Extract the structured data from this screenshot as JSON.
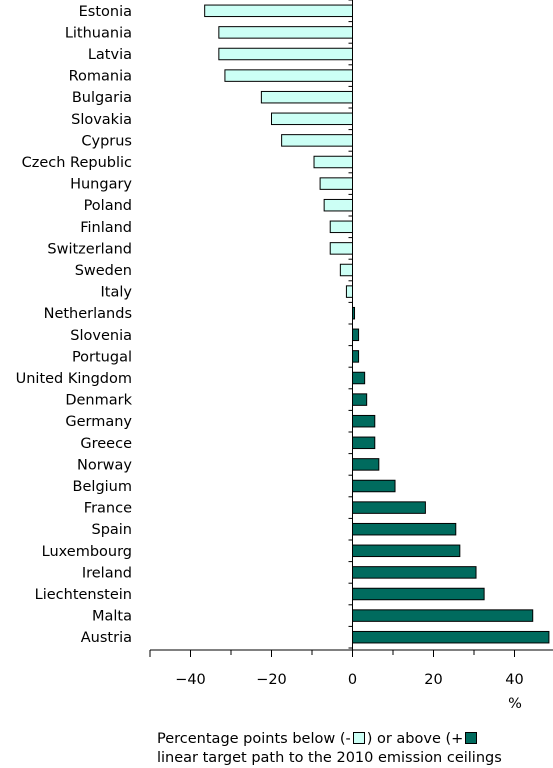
{
  "chart_data": {
    "type": "bar",
    "orientation": "horizontal",
    "categories": [
      "Estonia",
      "Lithuania",
      "Latvia",
      "Romania",
      "Bulgaria",
      "Slovakia",
      "Cyprus",
      "Czech Republic",
      "Hungary",
      "Poland",
      "Finland",
      "Switzerland",
      "Sweden",
      "Italy",
      "Netherlands",
      "Slovenia",
      "Portugal",
      "United Kingdom",
      "Denmark",
      "Germany",
      "Greece",
      "Norway",
      "Belgium",
      "France",
      "Spain",
      "Luxembourg",
      "Ireland",
      "Liechtenstein",
      "Malta",
      "Austria"
    ],
    "values": [
      -36.5,
      -33,
      -33,
      -31.5,
      -22.5,
      -20,
      -17.5,
      -9.5,
      -8,
      -7,
      -5.5,
      -5.5,
      -3,
      -1.5,
      0.5,
      1.5,
      1.5,
      3,
      3.5,
      5.5,
      5.5,
      6.5,
      10.5,
      18,
      25.5,
      26.5,
      30.5,
      32.5,
      44.5,
      48.5
    ],
    "xlim": [
      -50,
      50
    ],
    "xticks": [
      -40,
      -20,
      0,
      20,
      40
    ],
    "xlabel": "%",
    "title": "",
    "ylabel": "",
    "colors": {
      "negative": "#ccfff5",
      "positive": "#006b5e",
      "border": "#000000"
    },
    "legend": {
      "line1_prefix": "Percentage points below (-",
      "line1_middle": ") or above (+",
      "line2": "linear target path to the 2010 emission ceilings"
    }
  }
}
